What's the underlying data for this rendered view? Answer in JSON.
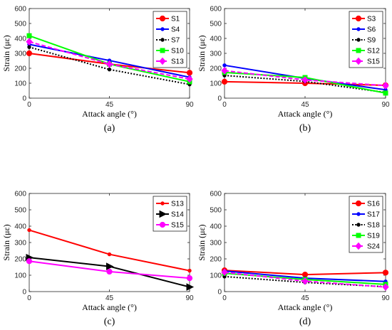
{
  "chart_data": [
    {
      "type": "line",
      "panel_label": "(a)",
      "xlabel": "Attack angle (°)",
      "ylabel": "Strain  (με)",
      "x": [
        0,
        45,
        90
      ],
      "xticks": [
        "0",
        "45",
        "90"
      ],
      "xlim": [
        0,
        90
      ],
      "ylim": [
        0,
        600
      ],
      "yticks": [
        "0",
        "100",
        "200",
        "300",
        "400",
        "500",
        "600"
      ],
      "legend_position": "top-right",
      "grid": false,
      "series": [
        {
          "name": "S1",
          "values": [
            300,
            228,
            170
          ],
          "color": "#ff0000",
          "style": "solid",
          "marker": "circle"
        },
        {
          "name": "S4",
          "values": [
            360,
            252,
            140
          ],
          "color": "#0000ff",
          "style": "solid",
          "marker": "dot"
        },
        {
          "name": "S7",
          "values": [
            342,
            192,
            92
          ],
          "color": "#000000",
          "style": "dotted",
          "marker": "dot"
        },
        {
          "name": "S10",
          "values": [
            418,
            228,
            110
          ],
          "color": "#00ff00",
          "style": "solid",
          "marker": "square"
        },
        {
          "name": "S13",
          "values": [
            378,
            228,
            128
          ],
          "color": "#ff00ff",
          "style": "dashed",
          "marker": "diamond"
        }
      ]
    },
    {
      "type": "line",
      "panel_label": "(b)",
      "xlabel": "Attack angle (°)",
      "ylabel": "Strain  (με)",
      "x": [
        0,
        45,
        90
      ],
      "xticks": [
        "0",
        "45",
        "90"
      ],
      "xlim": [
        0,
        90
      ],
      "ylim": [
        0,
        600
      ],
      "yticks": [
        "0",
        "100",
        "200",
        "300",
        "400",
        "500",
        "600"
      ],
      "legend_position": "top-right",
      "grid": false,
      "series": [
        {
          "name": "S3",
          "values": [
            110,
            100,
            86
          ],
          "color": "#ff0000",
          "style": "solid",
          "marker": "circle"
        },
        {
          "name": "S6",
          "values": [
            220,
            132,
            56
          ],
          "color": "#0000ff",
          "style": "solid",
          "marker": "dot"
        },
        {
          "name": "S9",
          "values": [
            152,
            112,
            38
          ],
          "color": "#000000",
          "style": "dotted",
          "marker": "dot"
        },
        {
          "name": "S12",
          "values": [
            172,
            138,
            34
          ],
          "color": "#00ff00",
          "style": "solid",
          "marker": "square"
        },
        {
          "name": "S15",
          "values": [
            184,
            122,
            84
          ],
          "color": "#ff00ff",
          "style": "dashed",
          "marker": "diamond"
        }
      ]
    },
    {
      "type": "line",
      "panel_label": "(c)",
      "xlabel": "Attack angle (°)",
      "ylabel": "Strain  (με)",
      "x": [
        0,
        45,
        90
      ],
      "xticks": [
        "0",
        "45",
        "90"
      ],
      "xlim": [
        0,
        90
      ],
      "ylim": [
        0,
        600
      ],
      "yticks": [
        "0",
        "100",
        "200",
        "300",
        "400",
        "500",
        "600"
      ],
      "legend_position": "top-right",
      "grid": false,
      "series": [
        {
          "name": "S13",
          "values": [
            376,
            228,
            128
          ],
          "color": "#ff0000",
          "style": "solid",
          "marker": "dot"
        },
        {
          "name": "S14",
          "values": [
            208,
            154,
            28
          ],
          "color": "#000000",
          "style": "solid",
          "marker": "triangle"
        },
        {
          "name": "S15",
          "values": [
            186,
            122,
            82
          ],
          "color": "#ff00ff",
          "style": "solid",
          "marker": "circle"
        }
      ]
    },
    {
      "type": "line",
      "panel_label": "(d)",
      "xlabel": "Attack angle (°)",
      "ylabel": "Strain  (με)",
      "x": [
        0,
        45,
        90
      ],
      "xticks": [
        "0",
        "45",
        "90"
      ],
      "xlim": [
        0,
        90
      ],
      "ylim": [
        0,
        600
      ],
      "yticks": [
        "0",
        "100",
        "200",
        "300",
        "400",
        "500",
        "600"
      ],
      "legend_position": "top-right",
      "grid": false,
      "series": [
        {
          "name": "S16",
          "values": [
            130,
            104,
            116
          ],
          "color": "#ff0000",
          "style": "solid",
          "marker": "circle"
        },
        {
          "name": "S17",
          "values": [
            126,
            82,
            62
          ],
          "color": "#0000ff",
          "style": "solid",
          "marker": "dot"
        },
        {
          "name": "S18",
          "values": [
            92,
            56,
            30
          ],
          "color": "#000000",
          "style": "dotted",
          "marker": "dot"
        },
        {
          "name": "S19",
          "values": [
            112,
            74,
            44
          ],
          "color": "#00ff00",
          "style": "solid",
          "marker": "square"
        },
        {
          "name": "S24",
          "values": [
            118,
            64,
            28
          ],
          "color": "#ff00ff",
          "style": "dashed",
          "marker": "diamond"
        }
      ]
    }
  ]
}
